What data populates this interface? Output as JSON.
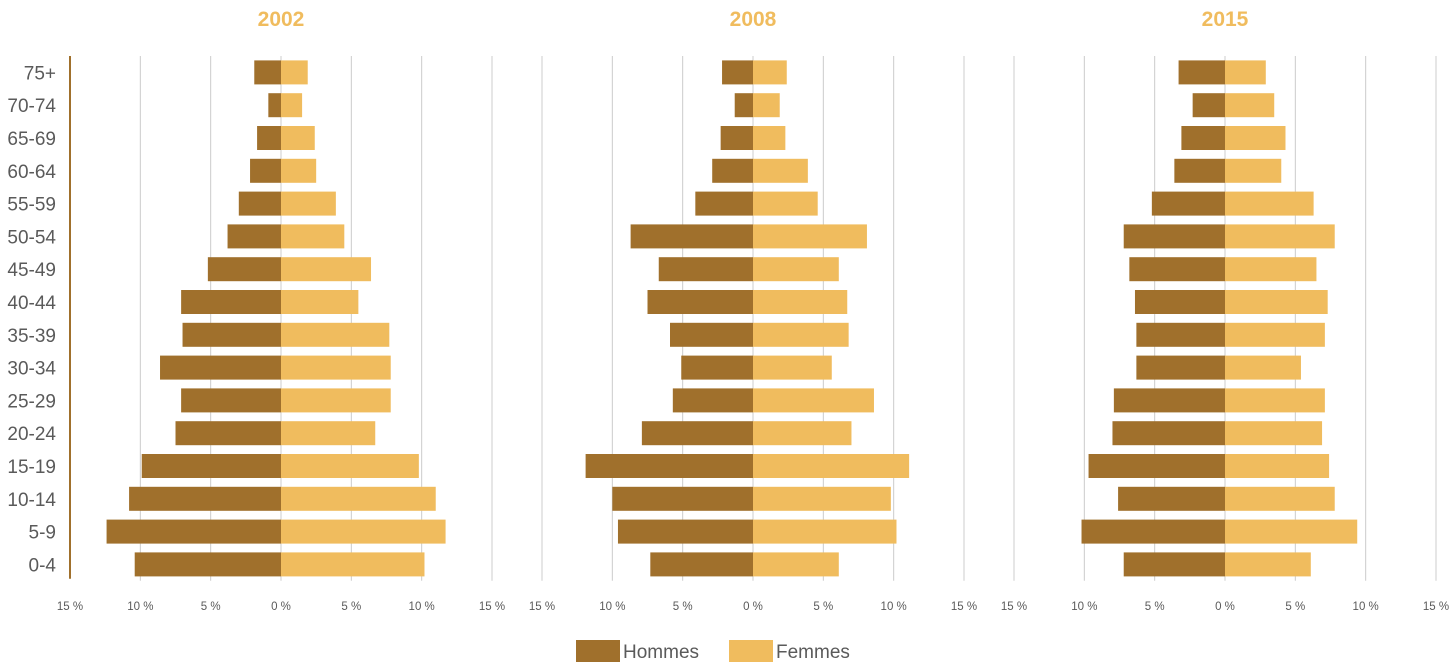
{
  "colors": {
    "hommes": "#a0702c",
    "femmes": "#f0bc5e",
    "title": "#f0bc5e",
    "grid": "#cccccc",
    "axis": "#a0702c"
  },
  "legend": {
    "hommes": "Hommes",
    "femmes": "Femmes"
  },
  "chart_data": {
    "type": "bar",
    "orientation": "horizontal-pyramid",
    "age_groups": [
      "75+",
      "70-74",
      "65-69",
      "60-64",
      "55-59",
      "50-54",
      "45-49",
      "40-44",
      "35-39",
      "30-34",
      "25-29",
      "20-24",
      "15-19",
      "10-14",
      "5-9",
      "0-4"
    ],
    "x_ticks": [
      15,
      10,
      5,
      0,
      5,
      10,
      15
    ],
    "x_tick_suffix": " %",
    "xlim": [
      -15,
      15
    ],
    "grid": true,
    "legend_position": "bottom",
    "panels": [
      {
        "title": "2002",
        "hommes": [
          1.9,
          0.9,
          1.7,
          2.2,
          3.0,
          3.8,
          5.2,
          7.1,
          7.0,
          8.6,
          7.1,
          7.5,
          9.9,
          10.8,
          12.4,
          10.4
        ],
        "femmes": [
          1.9,
          1.5,
          2.4,
          2.5,
          3.9,
          4.5,
          6.4,
          5.5,
          7.7,
          7.8,
          7.8,
          6.7,
          9.8,
          11.0,
          11.7,
          10.2
        ]
      },
      {
        "title": "2008",
        "hommes": [
          2.2,
          1.3,
          2.3,
          2.9,
          4.1,
          8.7,
          6.7,
          7.5,
          5.9,
          5.1,
          5.7,
          7.9,
          11.9,
          10.0,
          9.6,
          7.3
        ],
        "femmes": [
          2.4,
          1.9,
          2.3,
          3.9,
          4.6,
          8.1,
          6.1,
          6.7,
          6.8,
          5.6,
          8.6,
          7.0,
          11.1,
          9.8,
          10.2,
          6.1
        ]
      },
      {
        "title": "2015",
        "hommes": [
          3.3,
          2.3,
          3.1,
          3.6,
          5.2,
          7.2,
          6.8,
          6.4,
          6.3,
          6.3,
          7.9,
          8.0,
          9.7,
          7.6,
          10.2,
          7.2
        ],
        "femmes": [
          2.9,
          3.5,
          4.3,
          4.0,
          6.3,
          7.8,
          6.5,
          7.3,
          7.1,
          5.4,
          7.1,
          6.9,
          7.4,
          7.8,
          9.4,
          6.1
        ]
      }
    ]
  }
}
